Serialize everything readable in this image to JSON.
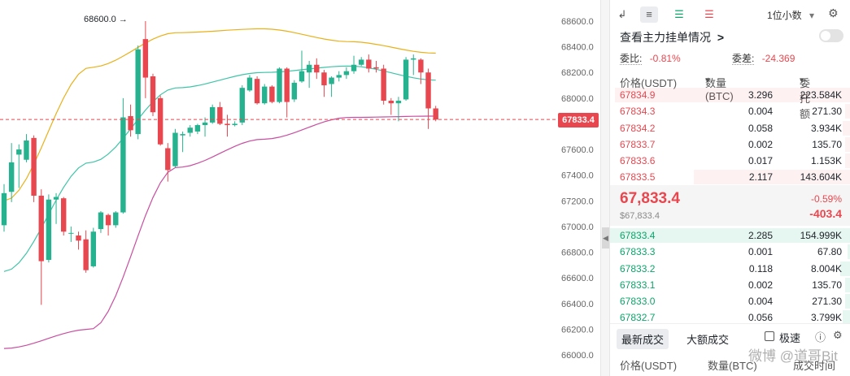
{
  "chart": {
    "y_ticks": [
      "68600.0",
      "68400.0",
      "68200.0",
      "68000.0",
      "67800.0",
      "67600.0",
      "67400.0",
      "67200.0",
      "67000.0",
      "66800.0",
      "66600.0",
      "66400.0",
      "66200.0",
      "66000.0"
    ],
    "max_label": "68600.0 →",
    "current_price_tag": "67833.4",
    "colors": {
      "up": "#26b28f",
      "down": "#e8474f",
      "upper_band": "#e8b11a",
      "middle_band": "#3fc4a8",
      "lower_band": "#c84ea0",
      "price_line": "#e8474f"
    }
  },
  "chart_data": {
    "type": "candlestick",
    "ylim": [
      65900,
      68800
    ],
    "candles": [
      {
        "o": 67010,
        "c": 67260,
        "h": 67330,
        "l": 66960
      },
      {
        "o": 67270,
        "c": 67500,
        "h": 67650,
        "l": 67190
      },
      {
        "o": 67560,
        "c": 67600,
        "h": 67640,
        "l": 67300
      },
      {
        "o": 67520,
        "c": 67670,
        "h": 67720,
        "l": 67500
      },
      {
        "o": 67690,
        "c": 67240,
        "h": 67710,
        "l": 67190
      },
      {
        "o": 67240,
        "c": 66730,
        "h": 67290,
        "l": 66390
      },
      {
        "o": 66740,
        "c": 67210,
        "h": 67250,
        "l": 66720
      },
      {
        "o": 67210,
        "c": 67230,
        "h": 67260,
        "l": 67020
      },
      {
        "o": 67220,
        "c": 66960,
        "h": 67230,
        "l": 66930
      },
      {
        "o": 66950,
        "c": 66950,
        "h": 67000,
        "l": 66880
      },
      {
        "o": 66930,
        "c": 66890,
        "h": 66960,
        "l": 66820
      },
      {
        "o": 66900,
        "c": 66660,
        "h": 66970,
        "l": 66640
      },
      {
        "o": 66690,
        "c": 66960,
        "h": 66990,
        "l": 66680
      },
      {
        "o": 66980,
        "c": 67110,
        "h": 67120,
        "l": 66950
      },
      {
        "o": 67090,
        "c": 67010,
        "h": 67100,
        "l": 66930
      },
      {
        "o": 67010,
        "c": 67110,
        "h": 67120,
        "l": 66990
      },
      {
        "o": 67110,
        "c": 67850,
        "h": 68000,
        "l": 67100
      },
      {
        "o": 67860,
        "c": 67750,
        "h": 67950,
        "l": 67700
      },
      {
        "o": 67720,
        "c": 68380,
        "h": 68410,
        "l": 67680
      },
      {
        "o": 68460,
        "c": 68160,
        "h": 68600,
        "l": 68000
      },
      {
        "o": 68170,
        "c": 67890,
        "h": 68190,
        "l": 67860
      },
      {
        "o": 68000,
        "c": 67640,
        "h": 68020,
        "l": 67630
      },
      {
        "o": 67610,
        "c": 67440,
        "h": 67650,
        "l": 67350
      },
      {
        "o": 67470,
        "c": 67730,
        "h": 67760,
        "l": 67460
      },
      {
        "o": 67710,
        "c": 67720,
        "h": 67740,
        "l": 67580
      },
      {
        "o": 67730,
        "c": 67770,
        "h": 67790,
        "l": 67700
      },
      {
        "o": 67740,
        "c": 67790,
        "h": 67800,
        "l": 67720
      },
      {
        "o": 67790,
        "c": 67810,
        "h": 67850,
        "l": 67700
      },
      {
        "o": 67810,
        "c": 67930,
        "h": 67950,
        "l": 67800
      },
      {
        "o": 67930,
        "c": 67800,
        "h": 67970,
        "l": 67790
      },
      {
        "o": 67800,
        "c": 67790,
        "h": 67870,
        "l": 67700
      },
      {
        "o": 67790,
        "c": 67800,
        "h": 67820,
        "l": 67780
      },
      {
        "o": 67810,
        "c": 68080,
        "h": 68100,
        "l": 67790
      },
      {
        "o": 68060,
        "c": 68160,
        "h": 68180,
        "l": 68050
      },
      {
        "o": 68150,
        "c": 67960,
        "h": 68170,
        "l": 67950
      },
      {
        "o": 67960,
        "c": 68090,
        "h": 68110,
        "l": 67950
      },
      {
        "o": 68090,
        "c": 67970,
        "h": 68100,
        "l": 67960
      },
      {
        "o": 67970,
        "c": 68230,
        "h": 68240,
        "l": 67960
      },
      {
        "o": 68230,
        "c": 67970,
        "h": 68240,
        "l": 67850
      },
      {
        "o": 67990,
        "c": 68120,
        "h": 68140,
        "l": 67970
      },
      {
        "o": 68130,
        "c": 68210,
        "h": 68370,
        "l": 68120
      },
      {
        "o": 68200,
        "c": 68260,
        "h": 68290,
        "l": 68080
      },
      {
        "o": 68260,
        "c": 68200,
        "h": 68310,
        "l": 68150
      },
      {
        "o": 68200,
        "c": 68100,
        "h": 68220,
        "l": 68010
      },
      {
        "o": 68110,
        "c": 68160,
        "h": 68170,
        "l": 68010
      },
      {
        "o": 68160,
        "c": 68180,
        "h": 68210,
        "l": 68130
      },
      {
        "o": 68180,
        "c": 68210,
        "h": 68240,
        "l": 68150
      },
      {
        "o": 68210,
        "c": 68260,
        "h": 68330,
        "l": 68190
      },
      {
        "o": 68260,
        "c": 68300,
        "h": 68320,
        "l": 68250
      },
      {
        "o": 68300,
        "c": 68230,
        "h": 68340,
        "l": 68200
      },
      {
        "o": 68240,
        "c": 68230,
        "h": 68290,
        "l": 68200
      },
      {
        "o": 68230,
        "c": 67980,
        "h": 68260,
        "l": 67950
      },
      {
        "o": 67980,
        "c": 67960,
        "h": 68000,
        "l": 67870
      },
      {
        "o": 67960,
        "c": 67980,
        "h": 68010,
        "l": 67820
      },
      {
        "o": 67990,
        "c": 68300,
        "h": 68320,
        "l": 67980
      },
      {
        "o": 68300,
        "c": 68310,
        "h": 68340,
        "l": 68180
      },
      {
        "o": 68300,
        "c": 68200,
        "h": 68310,
        "l": 68110
      },
      {
        "o": 68200,
        "c": 67920,
        "h": 68230,
        "l": 67760
      },
      {
        "o": 67920,
        "c": 67833.4,
        "h": 67940,
        "l": 67820
      }
    ],
    "bands": {
      "upper": [
        67200,
        68240,
        68510,
        68540,
        68440,
        68350
      ],
      "middle": [
        66650,
        67500,
        68080,
        68200,
        68250,
        68140
      ],
      "lower": [
        66050,
        66200,
        67460,
        67680,
        67850,
        67860
      ]
    }
  },
  "panel": {
    "toolbar": {
      "decimal_select": "1位小数",
      "decimal_chevron": "▾"
    },
    "order_title": "查看主力挂单情况",
    "order_title_chevron": ">",
    "ratio_label": "委比:",
    "ratio_value": "-0.81%",
    "diff_label": "委差:",
    "diff_value": "-24.369",
    "headers": {
      "price": "价格(USDT)",
      "qty": "数量 (BTC)",
      "qty_chevron": "▾",
      "total": "委托额",
      "total_chevron": "▾"
    },
    "asks": [
      {
        "price": "67834.9",
        "qty": "3.296",
        "total": "223.584K",
        "depth": 0.98
      },
      {
        "price": "67834.3",
        "qty": "0.004",
        "total": "271.30",
        "depth": 0.02
      },
      {
        "price": "67834.2",
        "qty": "0.058",
        "total": "3.934K",
        "depth": 0.03
      },
      {
        "price": "67833.7",
        "qty": "0.002",
        "total": "135.70",
        "depth": 0.02
      },
      {
        "price": "67833.6",
        "qty": "0.017",
        "total": "1.153K",
        "depth": 0.02
      },
      {
        "price": "67833.5",
        "qty": "2.117",
        "total": "143.604K",
        "depth": 0.65
      }
    ],
    "mid": {
      "price": "67,833.4",
      "sub": "$67,833.4",
      "pct": "-0.59%",
      "change": "-403.4"
    },
    "bids": [
      {
        "price": "67833.4",
        "qty": "2.285",
        "total": "154.999K",
        "depth": 1.0
      },
      {
        "price": "67833.3",
        "qty": "0.001",
        "total": "67.80",
        "depth": 0.01
      },
      {
        "price": "67833.2",
        "qty": "0.118",
        "total": "8.004K",
        "depth": 0.04
      },
      {
        "price": "67833.1",
        "qty": "0.002",
        "total": "135.70",
        "depth": 0.02
      },
      {
        "price": "67833.0",
        "qty": "0.004",
        "total": "271.30",
        "depth": 0.02
      },
      {
        "price": "67832.7",
        "qty": "0.056",
        "total": "3.799K",
        "depth": 0.03
      }
    ],
    "trades": {
      "tab_latest": "最新成交",
      "tab_large": "大额成交",
      "fast_label": "极速",
      "col_price": "价格(USDT)",
      "col_qty": "数量(BTC)",
      "col_time": "成交时间"
    },
    "watermark": "微博 @道哥Bit"
  }
}
